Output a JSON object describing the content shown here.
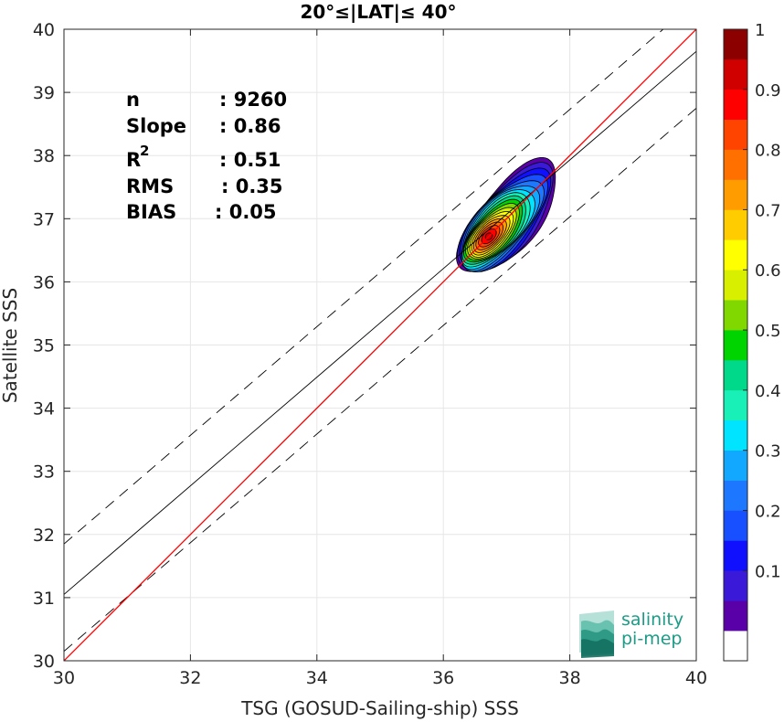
{
  "chart_data": {
    "type": "contour",
    "title": "20°≤|LAT|≤ 40°",
    "xlabel": "TSG (GOSUD-Sailing-ship) SSS",
    "ylabel": "Satellite SSS",
    "xlim": [
      30,
      40
    ],
    "ylim": [
      30,
      40
    ],
    "xticks": [
      30,
      32,
      34,
      36,
      38,
      40
    ],
    "yticks": [
      30,
      31,
      32,
      33,
      34,
      35,
      36,
      37,
      38,
      39,
      40
    ],
    "grid": true,
    "stats": {
      "n_label": "n",
      "n_value": ": 9260",
      "slope_label": "Slope",
      "slope_value": ": 0.86",
      "r2_label": "R",
      "r2_sup": "2",
      "r2_value": ": 0.51",
      "rms_label": "RMS",
      "rms_value": ": 0.35",
      "bias_label": "BIAS",
      "bias_value": ": 0.05"
    },
    "lines": {
      "identity": {
        "slope": 1,
        "intercept": 0,
        "color": "#ff0000"
      },
      "fit": {
        "slope": 0.86,
        "intercept": 5.25,
        "color": "#000000"
      },
      "fit_upper": {
        "slope": 0.86,
        "intercept": 6.05,
        "color": "#000000",
        "style": "dashed"
      },
      "fit_lower": {
        "slope": 0.86,
        "intercept": 4.35,
        "color": "#000000",
        "style": "dashed"
      }
    },
    "density_peak": {
      "x": 36.72,
      "y": 36.72
    },
    "contour_levels": [
      0.05,
      0.1,
      0.15,
      0.2,
      0.25,
      0.3,
      0.35,
      0.4,
      0.45,
      0.5,
      0.55,
      0.6,
      0.65,
      0.7,
      0.75,
      0.8,
      0.85,
      0.9,
      0.95
    ],
    "colorbar": {
      "ticks": [
        "0.1",
        "0.2",
        "0.3",
        "0.4",
        "0.5",
        "0.6",
        "0.7",
        "0.8",
        "0.9",
        "1"
      ],
      "tick_values": [
        0.1,
        0.2,
        0.3,
        0.4,
        0.5,
        0.6,
        0.7,
        0.8,
        0.9,
        1.0
      ],
      "colors": [
        "#ffffff",
        "#5a00a8",
        "#3a1ad8",
        "#1010ff",
        "#1850ff",
        "#1e78ff",
        "#12a8ff",
        "#00e4ff",
        "#18f0b8",
        "#00d88a",
        "#00d400",
        "#80d800",
        "#d8f000",
        "#ffff00",
        "#ffcc00",
        "#ff9c00",
        "#ff7000",
        "#ff4400",
        "#ff0000",
        "#d00000",
        "#8c0000"
      ]
    }
  },
  "logo": {
    "line1": "salinity",
    "line2": "pi-mep"
  }
}
